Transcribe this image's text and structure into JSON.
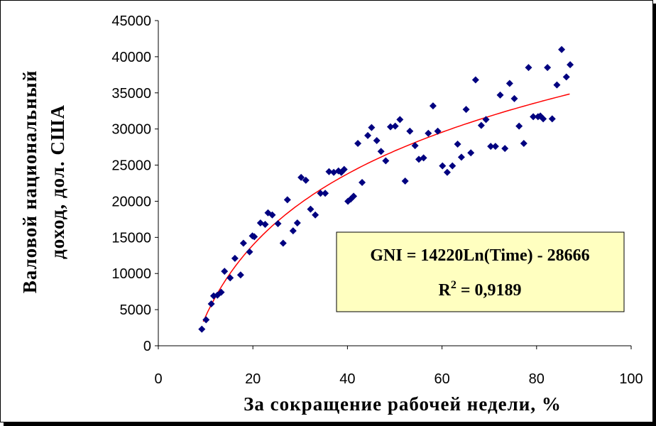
{
  "chart_data": {
    "type": "scatter",
    "title": "",
    "xlabel": "За сокращение рабочей недели, %",
    "ylabel_line1": "Валовой национальный",
    "ylabel_line2": "доход, дол. США",
    "xlim": [
      0,
      100
    ],
    "ylim": [
      0,
      45000
    ],
    "x_ticks": [
      "0",
      "20",
      "40",
      "60",
      "80",
      "100"
    ],
    "y_ticks": [
      "0",
      "5000",
      "10000",
      "15000",
      "20000",
      "25000",
      "30000",
      "35000",
      "40000",
      "45000"
    ],
    "grid": false,
    "marker_color": "#000080",
    "trend_color": "#ff0000",
    "trendline": {
      "type": "logarithmic",
      "a": 14220,
      "b": -28666,
      "x_range": [
        9.5,
        87
      ]
    },
    "equation_line": "GNI = 14220Ln(Time) - 28666",
    "r2_prefix": "R",
    "r2_exp": "2",
    "r2_value": " = 0,9189",
    "equation_box_color": "#ffffc0",
    "points": [
      [
        9.2,
        2300
      ],
      [
        10.1,
        3600
      ],
      [
        11.2,
        5800
      ],
      [
        11.7,
        6900
      ],
      [
        12.5,
        7000
      ],
      [
        13.3,
        7400
      ],
      [
        14,
        10300
      ],
      [
        15.2,
        9400
      ],
      [
        16.2,
        12100
      ],
      [
        17.4,
        9800
      ],
      [
        18,
        14200
      ],
      [
        19.3,
        13000
      ],
      [
        19.9,
        15200
      ],
      [
        20.3,
        15100
      ],
      [
        21.6,
        17000
      ],
      [
        22.6,
        16800
      ],
      [
        23.2,
        18400
      ],
      [
        24.1,
        18100
      ],
      [
        25.3,
        16900
      ],
      [
        26.4,
        14200
      ],
      [
        27.3,
        20200
      ],
      [
        28.5,
        15900
      ],
      [
        29.4,
        17000
      ],
      [
        30.2,
        23300
      ],
      [
        31.2,
        22900
      ],
      [
        32.2,
        18900
      ],
      [
        33.2,
        18100
      ],
      [
        34.3,
        21100
      ],
      [
        35.3,
        21100
      ],
      [
        36.1,
        24100
      ],
      [
        37.1,
        24000
      ],
      [
        38.1,
        24200
      ],
      [
        38.7,
        24000
      ],
      [
        39.3,
        24400
      ],
      [
        40.1,
        20000
      ],
      [
        40.7,
        20300
      ],
      [
        41.3,
        20700
      ],
      [
        42.2,
        28000
      ],
      [
        43.1,
        22600
      ],
      [
        44.3,
        29100
      ],
      [
        45.1,
        30200
      ],
      [
        46.2,
        28400
      ],
      [
        47.1,
        26900
      ],
      [
        48.1,
        25600
      ],
      [
        49.1,
        30300
      ],
      [
        50.1,
        30400
      ],
      [
        51.1,
        31300
      ],
      [
        52.2,
        22800
      ],
      [
        53.2,
        29700
      ],
      [
        54.3,
        27700
      ],
      [
        55.1,
        25800
      ],
      [
        56.1,
        26000
      ],
      [
        57.1,
        29400
      ],
      [
        58.1,
        33200
      ],
      [
        59.1,
        29700
      ],
      [
        60.1,
        24900
      ],
      [
        61.1,
        24000
      ],
      [
        62.2,
        24900
      ],
      [
        63.3,
        27900
      ],
      [
        64.1,
        26100
      ],
      [
        65.1,
        32700
      ],
      [
        66.1,
        26700
      ],
      [
        67.1,
        36800
      ],
      [
        68.3,
        30500
      ],
      [
        69.3,
        31300
      ],
      [
        70.3,
        27600
      ],
      [
        71.3,
        27600
      ],
      [
        72.3,
        34700
      ],
      [
        73.3,
        27300
      ],
      [
        74.3,
        36300
      ],
      [
        75.3,
        34200
      ],
      [
        76.3,
        30400
      ],
      [
        77.3,
        28000
      ],
      [
        78.3,
        38500
      ],
      [
        79.3,
        31700
      ],
      [
        80.3,
        31700
      ],
      [
        80.8,
        31800
      ],
      [
        81.4,
        31400
      ],
      [
        82.3,
        38500
      ],
      [
        83.3,
        31400
      ],
      [
        84.3,
        36100
      ],
      [
        85.3,
        41000
      ],
      [
        86.3,
        37200
      ],
      [
        87.1,
        38900
      ]
    ]
  }
}
